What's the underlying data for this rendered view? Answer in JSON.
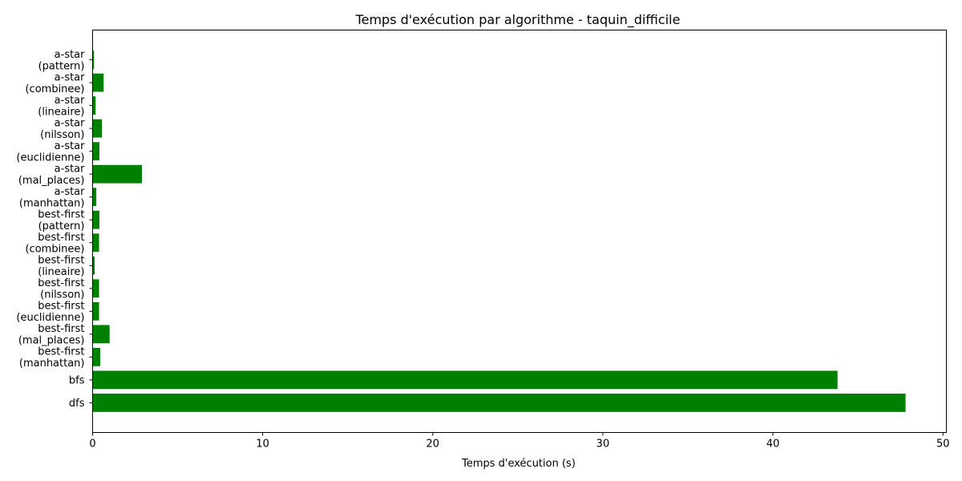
{
  "chart_data": {
    "type": "bar",
    "orientation": "horizontal",
    "title": "Temps d'exécution par algorithme - taquin_difficile",
    "xlabel": "Temps d'exécution (s)",
    "ylabel": "",
    "xlim": [
      0,
      50.2
    ],
    "xticks": [
      0,
      10,
      20,
      30,
      40,
      50
    ],
    "grid": false,
    "bar_color": "#008000",
    "categories": [
      [
        "dfs"
      ],
      [
        "bfs"
      ],
      [
        "best-first",
        "(manhattan)"
      ],
      [
        "best-first",
        "(mal_places)"
      ],
      [
        "best-first",
        "(euclidienne)"
      ],
      [
        "best-first",
        "(nilsson)"
      ],
      [
        "best-first",
        "(lineaire)"
      ],
      [
        "best-first",
        "(combinee)"
      ],
      [
        "best-first",
        "(pattern)"
      ],
      [
        "a-star",
        "(manhattan)"
      ],
      [
        "a-star",
        "(mal_places)"
      ],
      [
        "a-star",
        "(euclidienne)"
      ],
      [
        "a-star",
        "(nilsson)"
      ],
      [
        "a-star",
        "(lineaire)"
      ],
      [
        "a-star",
        "(combinee)"
      ],
      [
        "a-star",
        "(pattern)"
      ]
    ],
    "values": [
      47.8,
      43.8,
      0.45,
      1.0,
      0.38,
      0.38,
      0.12,
      0.38,
      0.4,
      0.22,
      2.9,
      0.4,
      0.55,
      0.18,
      0.65,
      0.08
    ]
  }
}
